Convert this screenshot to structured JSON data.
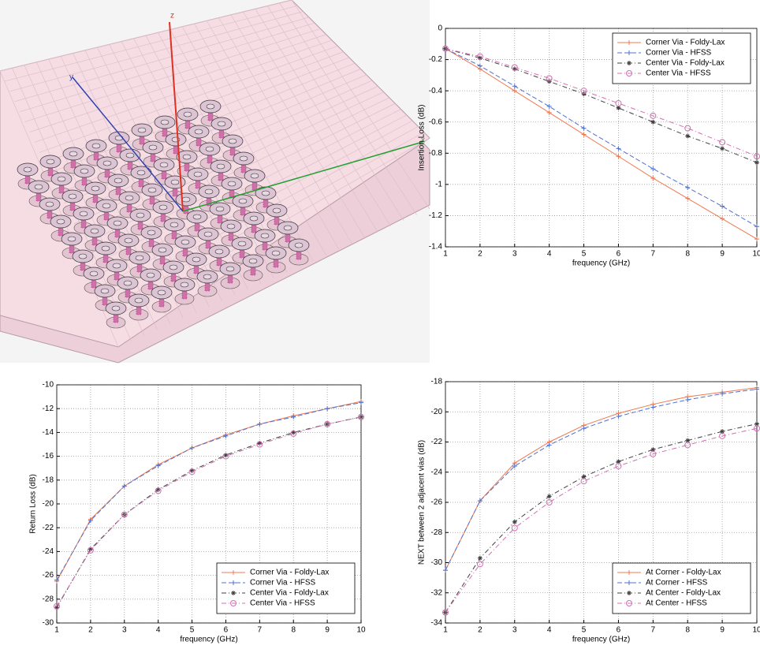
{
  "model_view": {
    "axis_labels": [
      "z",
      "y",
      "x"
    ]
  },
  "chart_data": [
    {
      "type": "line",
      "xlabel": "frequency (GHz)",
      "ylabel": "Insertion Loss (dB)",
      "x": [
        1,
        2,
        3,
        4,
        5,
        6,
        7,
        8,
        9,
        10
      ],
      "xlim": [
        1,
        10
      ],
      "xticks": [
        1,
        2,
        3,
        4,
        5,
        6,
        7,
        8,
        9,
        10
      ],
      "ylim": [
        -1.4,
        0
      ],
      "yticks": [
        -1.4,
        -1.2,
        -1,
        -0.8,
        -0.6,
        -0.4,
        -0.2,
        0
      ],
      "grid": true,
      "legend": "upper right",
      "series": [
        {
          "name": "Corner Via - Foldy-Lax",
          "color": "#f07850",
          "line_style": "solid",
          "marker": "+",
          "values": [
            -0.13,
            -0.26,
            -0.4,
            -0.54,
            -0.68,
            -0.82,
            -0.96,
            -1.09,
            -1.22,
            -1.35
          ]
        },
        {
          "name": "Corner Via - HFSS",
          "color": "#5070d0",
          "line_style": "dashed",
          "marker": "+",
          "values": [
            -0.13,
            -0.24,
            -0.37,
            -0.5,
            -0.64,
            -0.77,
            -0.9,
            -1.02,
            -1.14,
            -1.27
          ]
        },
        {
          "name": "Center Via - Foldy-Lax",
          "color": "#404040",
          "line_style": "dashdot",
          "marker": "*",
          "values": [
            -0.13,
            -0.19,
            -0.26,
            -0.34,
            -0.42,
            -0.51,
            -0.6,
            -0.69,
            -0.77,
            -0.86
          ]
        },
        {
          "name": "Center Via - HFSS",
          "color": "#d070b0",
          "line_style": "dashdot",
          "marker": "o",
          "values": [
            -0.13,
            -0.18,
            -0.25,
            -0.32,
            -0.4,
            -0.48,
            -0.56,
            -0.64,
            -0.73,
            -0.82
          ]
        }
      ]
    },
    {
      "type": "line",
      "xlabel": "frequency (GHz)",
      "ylabel": "Return Loss (dB)",
      "x": [
        1,
        2,
        3,
        4,
        5,
        6,
        7,
        8,
        9,
        10
      ],
      "xlim": [
        1,
        10
      ],
      "xticks": [
        1,
        2,
        3,
        4,
        5,
        6,
        7,
        8,
        9,
        10
      ],
      "ylim": [
        -30,
        -10
      ],
      "yticks": [
        -30,
        -28,
        -26,
        -24,
        -22,
        -20,
        -18,
        -16,
        -14,
        -12,
        -10
      ],
      "grid": true,
      "legend": "lower right",
      "series": [
        {
          "name": "Corner Via - Foldy-Lax",
          "color": "#f07850",
          "line_style": "solid",
          "marker": "+",
          "values": [
            -26.5,
            -21.3,
            -18.5,
            -16.7,
            -15.3,
            -14.2,
            -13.3,
            -12.6,
            -12.0,
            -11.4
          ]
        },
        {
          "name": "Corner Via - HFSS",
          "color": "#5070d0",
          "line_style": "dashed",
          "marker": "+",
          "values": [
            -26.4,
            -21.4,
            -18.5,
            -16.8,
            -15.3,
            -14.3,
            -13.3,
            -12.7,
            -12.0,
            -11.5
          ]
        },
        {
          "name": "Center Via - Foldy-Lax",
          "color": "#404040",
          "line_style": "dashdot",
          "marker": "*",
          "values": [
            -28.7,
            -23.8,
            -20.9,
            -18.8,
            -17.2,
            -15.9,
            -14.9,
            -14.0,
            -13.3,
            -12.7
          ]
        },
        {
          "name": "Center Via - HFSS",
          "color": "#d070b0",
          "line_style": "dashdot",
          "marker": "o",
          "values": [
            -28.6,
            -23.9,
            -20.9,
            -18.9,
            -17.3,
            -16.0,
            -15.0,
            -14.1,
            -13.3,
            -12.7
          ]
        }
      ]
    },
    {
      "type": "line",
      "xlabel": "frequency (GHz)",
      "ylabel": "NEXT between 2 adjacent vias (dB)",
      "x": [
        1,
        2,
        3,
        4,
        5,
        6,
        7,
        8,
        9,
        10
      ],
      "xlim": [
        1,
        10
      ],
      "xticks": [
        1,
        2,
        3,
        4,
        5,
        6,
        7,
        8,
        9,
        10
      ],
      "ylim": [
        -34,
        -18
      ],
      "yticks": [
        -34,
        -32,
        -30,
        -28,
        -26,
        -24,
        -22,
        -20,
        -18
      ],
      "grid": true,
      "legend": "lower right",
      "series": [
        {
          "name": "At Corner - Foldy-Lax",
          "color": "#f07850",
          "line_style": "solid",
          "marker": "+",
          "values": [
            -30.5,
            -25.9,
            -23.4,
            -22.0,
            -20.9,
            -20.1,
            -19.5,
            -19.0,
            -18.7,
            -18.4
          ]
        },
        {
          "name": "At Corner - HFSS",
          "color": "#5070d0",
          "line_style": "dashed",
          "marker": "+",
          "values": [
            -30.5,
            -25.9,
            -23.6,
            -22.2,
            -21.1,
            -20.3,
            -19.7,
            -19.2,
            -18.8,
            -18.5
          ]
        },
        {
          "name": "At Center - Foldy-Lax",
          "color": "#404040",
          "line_style": "dashdot",
          "marker": "*",
          "values": [
            -33.3,
            -29.7,
            -27.3,
            -25.6,
            -24.3,
            -23.3,
            -22.5,
            -21.9,
            -21.3,
            -20.8
          ]
        },
        {
          "name": "At Center - HFSS",
          "color": "#d070b0",
          "line_style": "dashdot",
          "marker": "o",
          "values": [
            -33.3,
            -30.1,
            -27.7,
            -26.0,
            -24.6,
            -23.6,
            -22.8,
            -22.2,
            -21.6,
            -21.1
          ]
        }
      ]
    }
  ]
}
